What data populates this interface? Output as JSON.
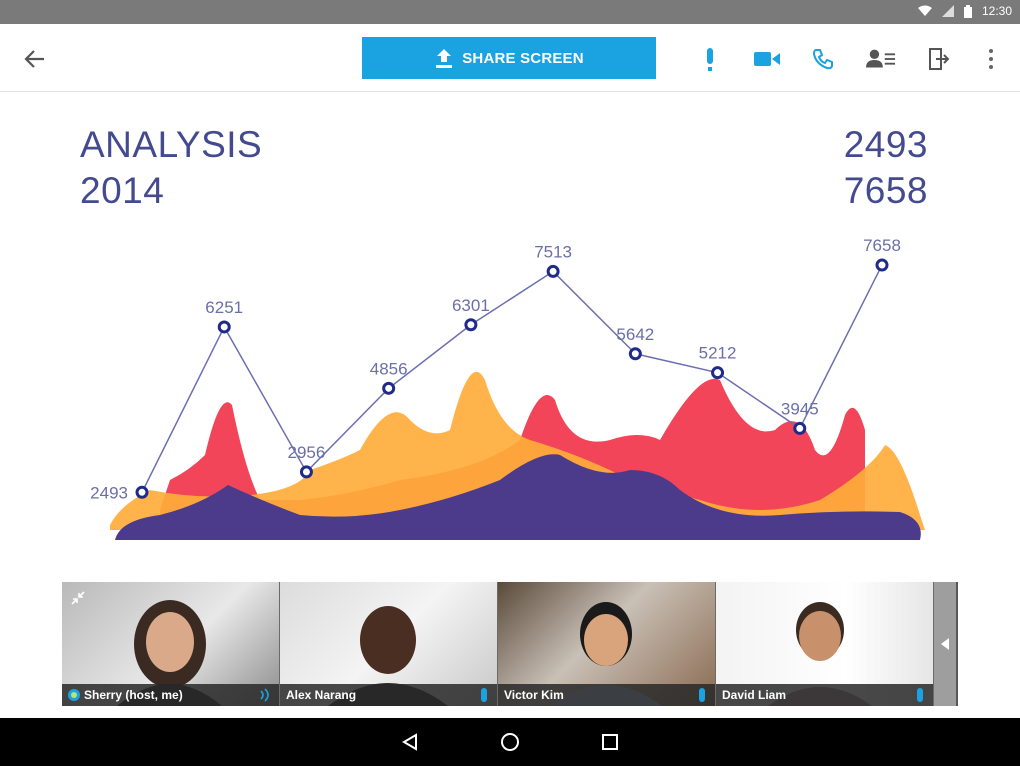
{
  "status_bar": {
    "time": "12:30"
  },
  "toolbar": {
    "share_label": "SHARE SCREEN",
    "accent": "#1aa3e0"
  },
  "analysis": {
    "title": "ANALYSIS",
    "year": "2014",
    "value_start": "2493",
    "value_end": "7658"
  },
  "chart_data": {
    "type": "line",
    "series": [
      {
        "values": [
          2493,
          6251,
          2956,
          4856,
          6301,
          7513,
          5642,
          5212,
          3945,
          7658
        ]
      }
    ],
    "data_labels": [
      "2493",
      "6251",
      "2956",
      "4856",
      "6301",
      "7513",
      "5642",
      "5212",
      "3945",
      "7658"
    ],
    "colors": {
      "line": "#6b6fb0",
      "marker": "#1f2a8a",
      "area_red": "#f2455a",
      "area_orange": "#ffad3b",
      "area_purple": "#4b3b8a",
      "label": "#6b6fa8"
    }
  },
  "participants": [
    {
      "name": "Sherry (host, me)"
    },
    {
      "name": "Alex Narang"
    },
    {
      "name": "Victor Kim"
    },
    {
      "name": "David Liam"
    }
  ]
}
